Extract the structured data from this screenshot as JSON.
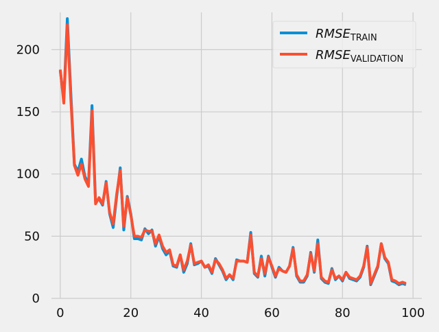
{
  "chart_data": {
    "type": "line",
    "title": "",
    "xlabel": "",
    "ylabel": "",
    "xlim": [
      -2.5,
      102.5
    ],
    "ylim": [
      0,
      230
    ],
    "xticks": [
      0,
      20,
      40,
      60,
      80,
      100
    ],
    "yticks": [
      0,
      50,
      100,
      150,
      200
    ],
    "grid": true,
    "legend_position": "top-right",
    "series": [
      {
        "name": "RMSE",
        "subscript": "TRAIN",
        "color": "#008fd5",
        "values": [
          183,
          160,
          225,
          165,
          108,
          102,
          112,
          98,
          92,
          155,
          78,
          80,
          75,
          94,
          68,
          57,
          82,
          105,
          55,
          82,
          68,
          48,
          48,
          47,
          56,
          52,
          55,
          42,
          50,
          40,
          35,
          38,
          26,
          25,
          35,
          21,
          28,
          44,
          27,
          28,
          30,
          25,
          26,
          20,
          32,
          27,
          22,
          15,
          19,
          15,
          31,
          30,
          30,
          29,
          53,
          20,
          17,
          34,
          18,
          34,
          25,
          17,
          25,
          22,
          21,
          26,
          41,
          18,
          13,
          13,
          18,
          37,
          21,
          47,
          16,
          13,
          12,
          24,
          15,
          18,
          14,
          21,
          16,
          15,
          14,
          17,
          25,
          42,
          11,
          18,
          25,
          44,
          32,
          28,
          14,
          13,
          11,
          12,
          11
        ]
      },
      {
        "name": "RMSE",
        "subscript": "VALIDATION",
        "color": "#fc4f30",
        "values": [
          184,
          157,
          220,
          160,
          107,
          99,
          108,
          96,
          90,
          151,
          76,
          81,
          76,
          93,
          69,
          60,
          84,
          103,
          58,
          81,
          67,
          50,
          50,
          49,
          55,
          54,
          54,
          44,
          51,
          42,
          37,
          39,
          27,
          26,
          35,
          23,
          30,
          43,
          28,
          29,
          30,
          25,
          27,
          21,
          31,
          28,
          23,
          16,
          19,
          16,
          30,
          30,
          30,
          29,
          51,
          21,
          18,
          32,
          20,
          33,
          26,
          18,
          24,
          22,
          21,
          26,
          40,
          19,
          14,
          14,
          19,
          36,
          22,
          44,
          17,
          14,
          13,
          23,
          16,
          18,
          15,
          21,
          17,
          16,
          15,
          18,
          26,
          41,
          12,
          19,
          26,
          44,
          33,
          29,
          15,
          14,
          12,
          13,
          12
        ]
      }
    ]
  }
}
